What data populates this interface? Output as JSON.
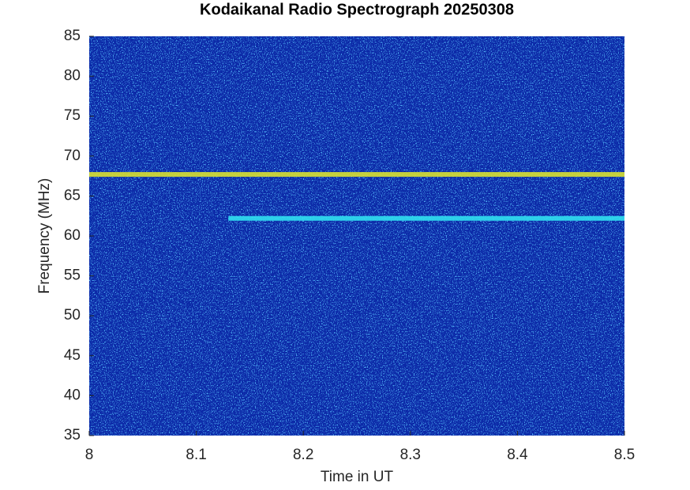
{
  "chart_data": {
    "type": "spectrogram",
    "title": "Kodaikanal Radio Spectrograph  20250308",
    "xlabel": "Time in UT",
    "ylabel": "Frequency (MHz)",
    "xlim": [
      8,
      8.5
    ],
    "xticks": [
      8,
      8.1,
      8.2,
      8.3,
      8.4,
      8.5
    ],
    "ylim": [
      35,
      85
    ],
    "yticks": [
      35,
      40,
      45,
      50,
      55,
      60,
      65,
      70,
      75,
      80,
      85
    ],
    "background": "#0c2aa8",
    "bands": [
      {
        "freq": 67.7,
        "x": [
          8,
          8.5
        ],
        "color": "#d8e030"
      },
      {
        "freq": 62.2,
        "x": [
          8.13,
          8.5
        ],
        "color": "#30e0f0"
      }
    ]
  }
}
